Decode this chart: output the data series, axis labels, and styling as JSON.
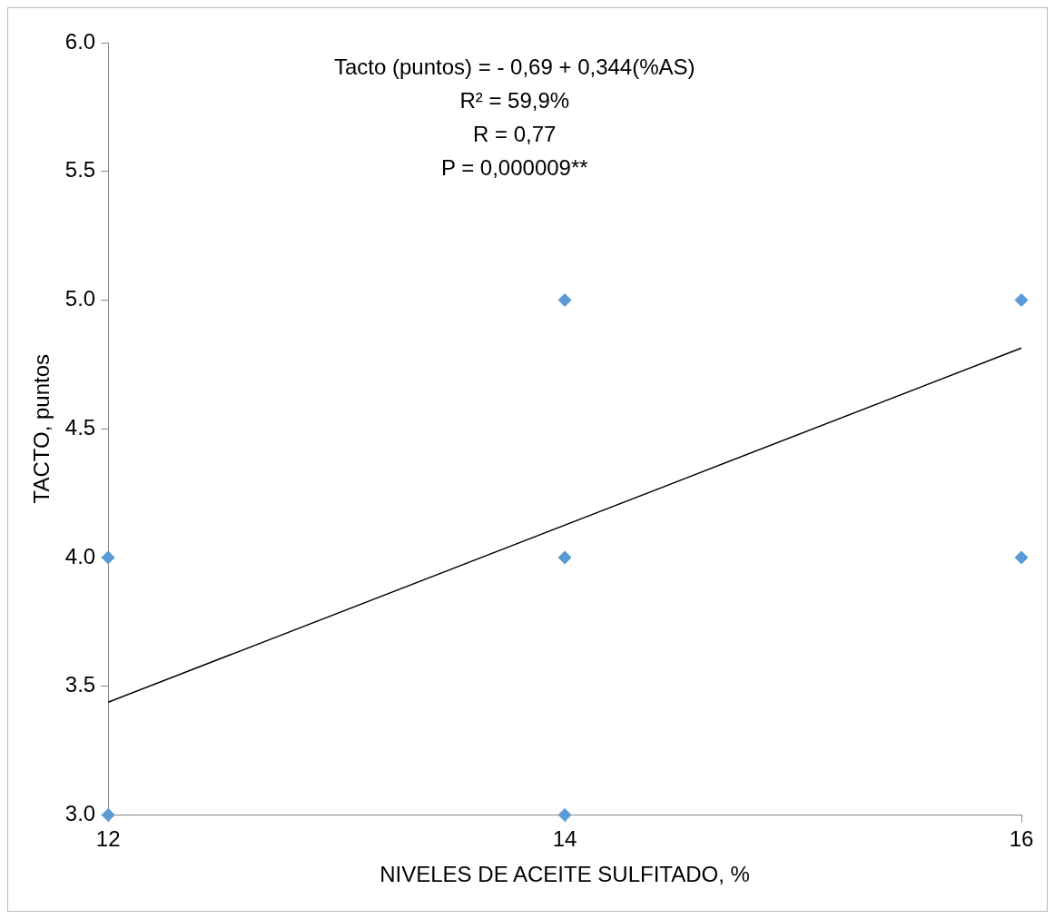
{
  "chart_data": {
    "type": "scatter",
    "xlabel": "NIVELES DE ACEITE SULFITADO, %",
    "ylabel": "TACTO, puntos",
    "annotations": [
      "Tacto (puntos) = - 0,69 + 0,344(%AS)",
      "R² = 59,9%",
      "R = 0,77",
      "P = 0,000009**"
    ],
    "xlim": [
      12,
      16
    ],
    "xticks": [
      12,
      14,
      16
    ],
    "ylim": [
      3,
      6
    ],
    "yticks": [
      {
        "value": 3,
        "label": "3.0"
      },
      {
        "value": 3.5,
        "label": "3.5"
      },
      {
        "value": 4,
        "label": "4.0"
      },
      {
        "value": 4.5,
        "label": "4.5"
      },
      {
        "value": 5,
        "label": "5.0"
      },
      {
        "value": 5.5,
        "label": "5.5"
      },
      {
        "value": 6,
        "label": "6.0"
      }
    ],
    "grid": false,
    "marker": "diamond",
    "series": [
      {
        "type": "scatter",
        "color": "#5b9bd5",
        "x": [
          12,
          12,
          14,
          14,
          14,
          16,
          16
        ],
        "values": [
          4,
          3,
          5,
          4,
          3,
          5,
          4
        ]
      },
      {
        "type": "line",
        "color": "#000000",
        "x": [
          12,
          16
        ],
        "values": [
          3.438,
          4.814
        ],
        "marker": "none"
      }
    ]
  }
}
